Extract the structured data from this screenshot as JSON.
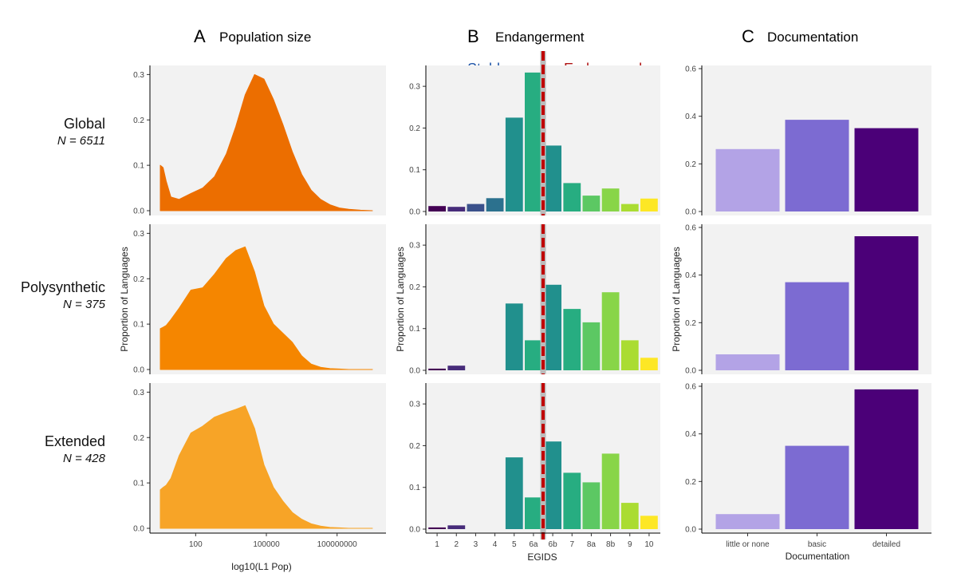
{
  "panels": {
    "a": {
      "letter": "A",
      "title": "Population size"
    },
    "b": {
      "letter": "B",
      "title": "Endangerment"
    },
    "c": {
      "letter": "C",
      "title": "Documentation"
    }
  },
  "rows": [
    {
      "label": "Global",
      "n": "N = 6511"
    },
    {
      "label": "Polysynthetic",
      "n": "N = 375"
    },
    {
      "label": "Extended",
      "n": "N = 428"
    }
  ],
  "annotations": {
    "stable": "Stable",
    "endangered": "Endangered"
  },
  "axes": {
    "ylabel": "Proportion of Languages",
    "a_xlabel": "log10(L1 Pop)",
    "b_xlabel": "EGIDS",
    "c_xlabel": "Documentation"
  },
  "colors": {
    "density": [
      "#ec6e00",
      "#f58600",
      "#f7a427"
    ],
    "doc": [
      "#b3a3e6",
      "#7c6bd2",
      "#4b0078"
    ],
    "egids": [
      "#440154",
      "#472c7a",
      "#3b518b",
      "#2c718e",
      "#21908d",
      "#27ad81",
      "#21908d",
      "#27ad81",
      "#5cc863",
      "#88d548",
      "#aadc32",
      "#fde725"
    ],
    "divider": "#c00000",
    "stable_arrow": "#1f6fc0",
    "endangered_arrow": "#b01515"
  },
  "chart_data": [
    {
      "type": "area",
      "panel": "A",
      "title": "Population size",
      "xlabel": "log10(L1 Pop)",
      "ylabel": "Proportion of Languages",
      "x_ticks": [
        "100",
        "100000",
        "100000000"
      ],
      "x_tick_values": [
        2,
        5,
        8
      ],
      "xlim": [
        0.5,
        9.5
      ],
      "ylim": [
        0,
        0.32
      ],
      "y_ticks": [
        "0.0",
        "0.1",
        "0.2",
        "0.3"
      ],
      "x": [
        0.5,
        0.62,
        0.75,
        0.95,
        1.3,
        1.8,
        2.3,
        2.8,
        3.3,
        3.7,
        4.1,
        4.5,
        4.9,
        5.3,
        5.7,
        6.1,
        6.5,
        6.9,
        7.3,
        7.7,
        8.1,
        8.5,
        9.0,
        9.5
      ],
      "series": [
        {
          "name": "Global",
          "values": [
            0.1,
            0.095,
            0.065,
            0.03,
            0.025,
            0.038,
            0.05,
            0.075,
            0.125,
            0.185,
            0.255,
            0.3,
            0.29,
            0.245,
            0.19,
            0.13,
            0.08,
            0.045,
            0.025,
            0.013,
            0.006,
            0.003,
            0.001,
            0.0
          ]
        },
        {
          "name": "Polysynthetic",
          "values": [
            0.09,
            0.093,
            0.097,
            0.11,
            0.135,
            0.175,
            0.18,
            0.21,
            0.245,
            0.262,
            0.27,
            0.215,
            0.14,
            0.1,
            0.08,
            0.06,
            0.03,
            0.012,
            0.005,
            0.002,
            0.001,
            0.0,
            0.0,
            0.0
          ]
        },
        {
          "name": "Extended",
          "values": [
            0.085,
            0.09,
            0.095,
            0.11,
            0.16,
            0.21,
            0.225,
            0.245,
            0.255,
            0.262,
            0.27,
            0.22,
            0.14,
            0.09,
            0.06,
            0.035,
            0.02,
            0.01,
            0.005,
            0.002,
            0.001,
            0.0,
            0.0,
            0.0
          ]
        }
      ]
    },
    {
      "type": "bar",
      "panel": "B",
      "title": "Endangerment",
      "xlabel": "EGIDS",
      "ylabel": "Proportion of Languages",
      "categories": [
        "1",
        "2",
        "3",
        "4",
        "5",
        "6a",
        "6b",
        "7",
        "8a",
        "8b",
        "9",
        "10"
      ],
      "ylim": [
        0,
        0.35
      ],
      "y_ticks": [
        "0.0",
        "0.1",
        "0.2",
        "0.3"
      ],
      "divider_after": "6a",
      "series": [
        {
          "name": "Global",
          "values": [
            0.013,
            0.011,
            0.018,
            0.032,
            0.225,
            0.333,
            0.158,
            0.068,
            0.038,
            0.055,
            0.018,
            0.031
          ]
        },
        {
          "name": "Polysynthetic",
          "values": [
            0.004,
            0.011,
            0,
            0,
            0.16,
            0.072,
            0.205,
            0.147,
            0.115,
            0.187,
            0.072,
            0.03
          ]
        },
        {
          "name": "Extended",
          "values": [
            0.004,
            0.009,
            0,
            0,
            0.172,
            0.076,
            0.21,
            0.135,
            0.112,
            0.181,
            0.063,
            0.032
          ]
        }
      ]
    },
    {
      "type": "bar",
      "panel": "C",
      "title": "Documentation",
      "xlabel": "Documentation",
      "ylabel": "Proportion of Languages",
      "categories": [
        "little or none",
        "basic",
        "detailed"
      ],
      "ylim": [
        0,
        0.6
      ],
      "y_ticks": [
        "0.0",
        "0.2",
        "0.4",
        "0.6"
      ],
      "series": [
        {
          "name": "Global",
          "values": [
            0.262,
            0.385,
            0.35
          ]
        },
        {
          "name": "Polysynthetic",
          "values": [
            0.067,
            0.37,
            0.563
          ]
        },
        {
          "name": "Extended",
          "values": [
            0.063,
            0.35,
            0.587
          ]
        }
      ]
    }
  ]
}
